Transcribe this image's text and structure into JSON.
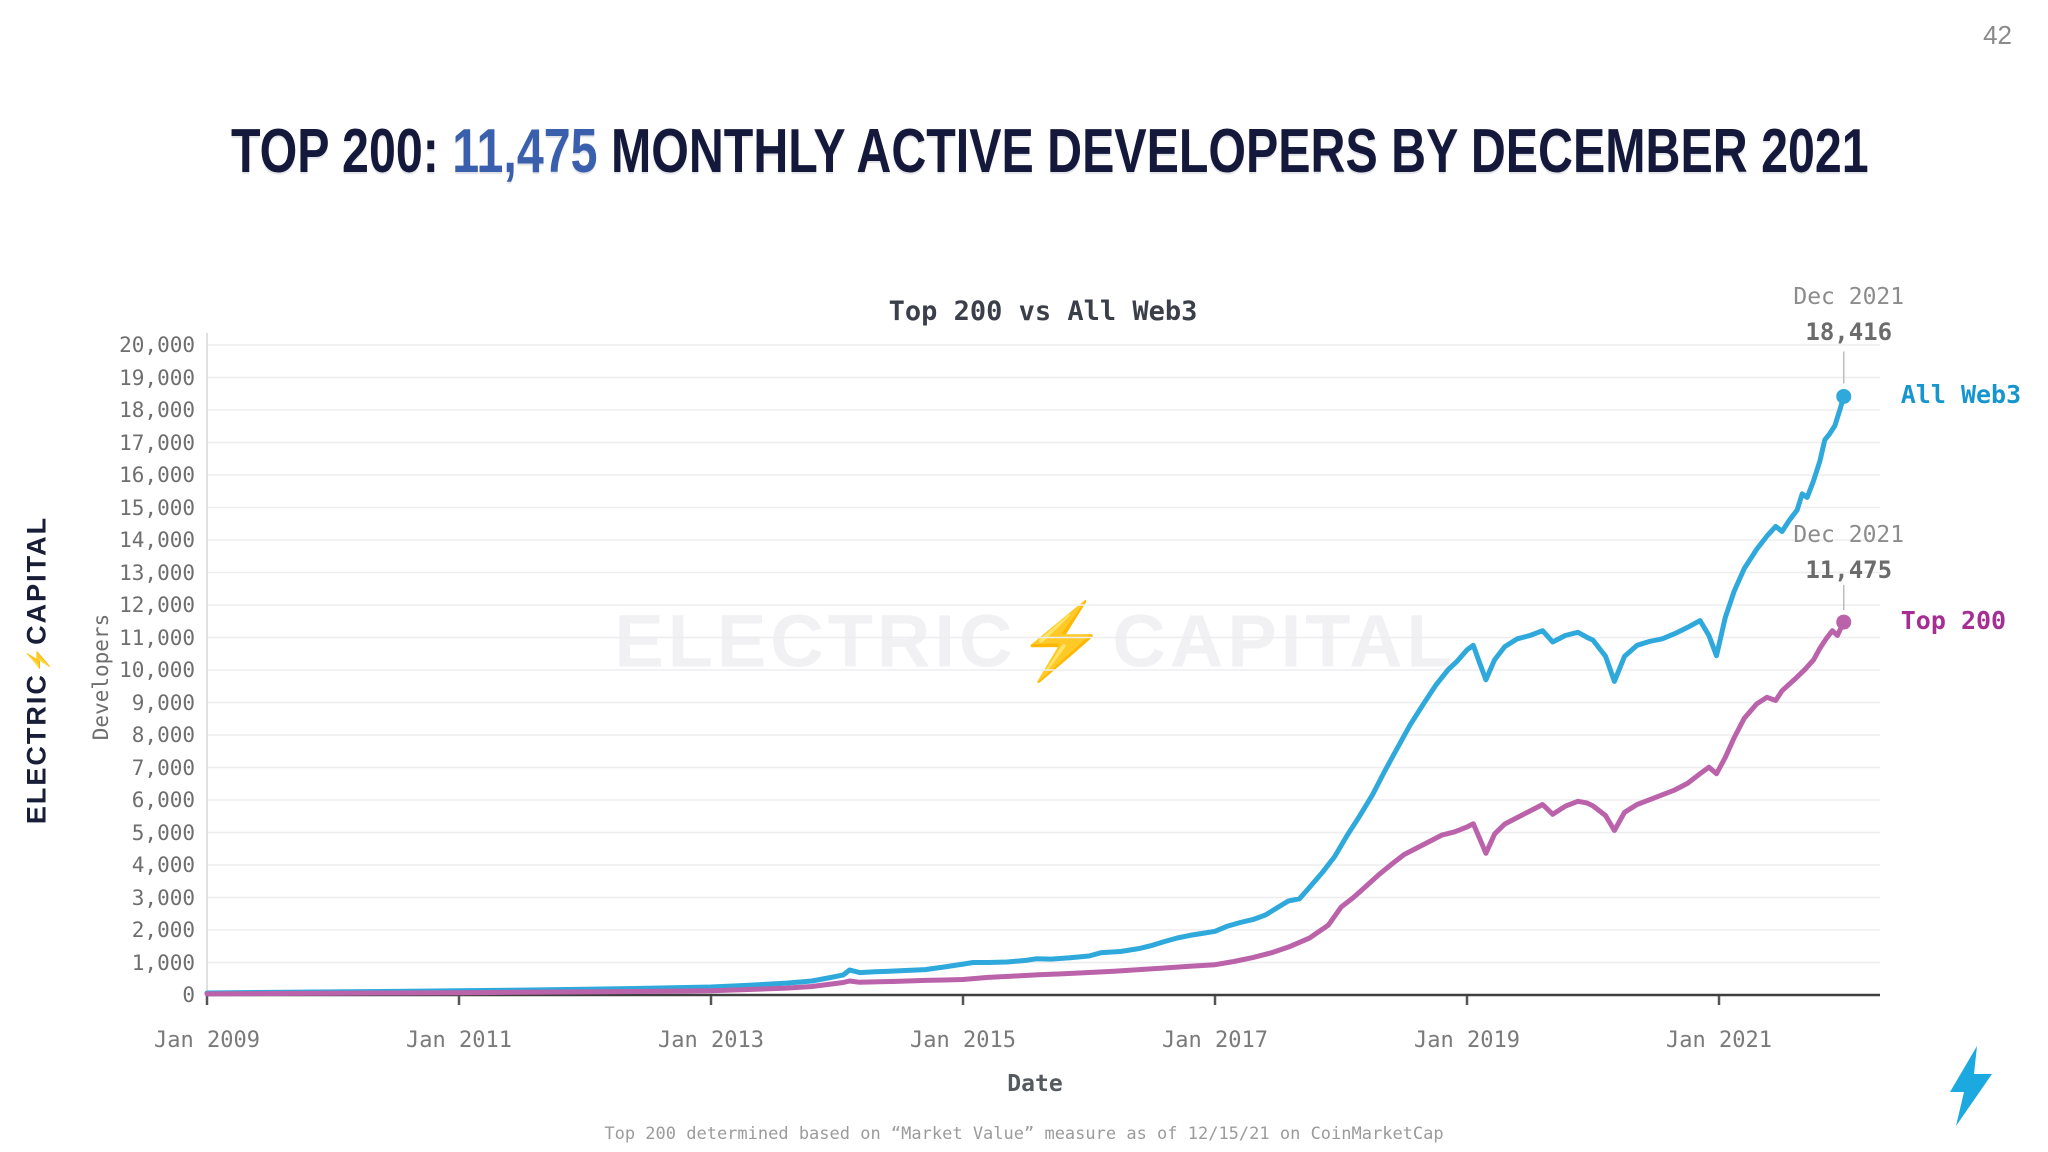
{
  "page": {
    "number": "42"
  },
  "slide_title": {
    "prefix": "TOP 200: ",
    "highlight": "11,475",
    "suffix": " MONTHLY ACTIVE DEVELOPERS BY DECEMBER 2021",
    "text_color": "#14183a",
    "highlight_color": "#3a5fad"
  },
  "logo": {
    "left_text": "ELECTRIC",
    "bolt": "⚡",
    "right_text": "CAPITAL",
    "color": "#191e38",
    "bolt_color": "#29abe2"
  },
  "watermark": {
    "text": "ELECTRIC⚡CAPITAL"
  },
  "footer": {
    "note": "Top 200 determined based on “Market Value” measure as of 12/15/21 on CoinMarketCap"
  },
  "bolt_icon_color": "#1ca9e0",
  "chart_data": {
    "type": "line",
    "title": "Top 200 vs All Web3",
    "xlabel": "Date",
    "ylabel": "Developers",
    "grid": true,
    "legend_position": "right-of-line-ends",
    "ylim": [
      0,
      20000
    ],
    "xlim": [
      2008.95,
      2022.3
    ],
    "y_ticks": [
      {
        "value": 0,
        "label": "0"
      },
      {
        "value": 1000,
        "label": "1,000"
      },
      {
        "value": 2000,
        "label": "2,000"
      },
      {
        "value": 3000,
        "label": "3,000"
      },
      {
        "value": 4000,
        "label": "4,000"
      },
      {
        "value": 5000,
        "label": "5,000"
      },
      {
        "value": 6000,
        "label": "6,000"
      },
      {
        "value": 7000,
        "label": "7,000"
      },
      {
        "value": 8000,
        "label": "8,000"
      },
      {
        "value": 9000,
        "label": "9,000"
      },
      {
        "value": 10000,
        "label": "10,000"
      },
      {
        "value": 11000,
        "label": "11,000"
      },
      {
        "value": 12000,
        "label": "12,000"
      },
      {
        "value": 13000,
        "label": "13,000"
      },
      {
        "value": 14000,
        "label": "14,000"
      },
      {
        "value": 15000,
        "label": "15,000"
      },
      {
        "value": 16000,
        "label": "16,000"
      },
      {
        "value": 17000,
        "label": "17,000"
      },
      {
        "value": 18000,
        "label": "18,000"
      },
      {
        "value": 19000,
        "label": "19,000"
      },
      {
        "value": 20000,
        "label": "20,000"
      }
    ],
    "x_ticks": [
      {
        "year": 2009,
        "label": "Jan 2009"
      },
      {
        "year": 2011,
        "label": "Jan 2011"
      },
      {
        "year": 2013,
        "label": "Jan 2013"
      },
      {
        "year": 2015,
        "label": "Jan 2015"
      },
      {
        "year": 2017,
        "label": "Jan 2017"
      },
      {
        "year": 2019,
        "label": "Jan 2019"
      },
      {
        "year": 2021,
        "label": "Jan 2021"
      }
    ],
    "series": [
      {
        "name": "All Web3",
        "line_color": "#2fa9dc",
        "label_color": "#1795ce",
        "end_value": 18416,
        "annotation": {
          "line1": "Dec 2021",
          "line2": "18,416"
        },
        "points": [
          [
            2009.0,
            60
          ],
          [
            2009.5,
            80
          ],
          [
            2010.0,
            95
          ],
          [
            2010.5,
            110
          ],
          [
            2011.0,
            130
          ],
          [
            2011.5,
            152
          ],
          [
            2012.0,
            178
          ],
          [
            2012.5,
            205
          ],
          [
            2013.0,
            245
          ],
          [
            2013.3,
            300
          ],
          [
            2013.6,
            365
          ],
          [
            2013.8,
            430
          ],
          [
            2013.95,
            540
          ],
          [
            2014.05,
            620
          ],
          [
            2014.1,
            770
          ],
          [
            2014.18,
            690
          ],
          [
            2014.3,
            715
          ],
          [
            2014.5,
            745
          ],
          [
            2014.7,
            780
          ],
          [
            2014.85,
            860
          ],
          [
            2015.0,
            950
          ],
          [
            2015.08,
            1000
          ],
          [
            2015.2,
            1000
          ],
          [
            2015.35,
            1015
          ],
          [
            2015.5,
            1065
          ],
          [
            2015.58,
            1115
          ],
          [
            2015.7,
            1105
          ],
          [
            2015.85,
            1145
          ],
          [
            2016.0,
            1200
          ],
          [
            2016.1,
            1305
          ],
          [
            2016.25,
            1340
          ],
          [
            2016.4,
            1430
          ],
          [
            2016.5,
            1525
          ],
          [
            2016.6,
            1645
          ],
          [
            2016.7,
            1755
          ],
          [
            2016.8,
            1835
          ],
          [
            2016.9,
            1895
          ],
          [
            2017.0,
            1960
          ],
          [
            2017.1,
            2120
          ],
          [
            2017.2,
            2230
          ],
          [
            2017.3,
            2320
          ],
          [
            2017.4,
            2460
          ],
          [
            2017.5,
            2700
          ],
          [
            2017.58,
            2890
          ],
          [
            2017.67,
            2960
          ],
          [
            2017.75,
            3310
          ],
          [
            2017.85,
            3760
          ],
          [
            2017.95,
            4260
          ],
          [
            2018.05,
            4920
          ],
          [
            2018.15,
            5520
          ],
          [
            2018.25,
            6160
          ],
          [
            2018.35,
            6910
          ],
          [
            2018.45,
            7620
          ],
          [
            2018.55,
            8320
          ],
          [
            2018.65,
            8930
          ],
          [
            2018.75,
            9520
          ],
          [
            2018.85,
            10010
          ],
          [
            2018.92,
            10260
          ],
          [
            2019.0,
            10620
          ],
          [
            2019.05,
            10760
          ],
          [
            2019.1,
            10220
          ],
          [
            2019.15,
            9700
          ],
          [
            2019.22,
            10320
          ],
          [
            2019.3,
            10720
          ],
          [
            2019.4,
            10960
          ],
          [
            2019.5,
            11060
          ],
          [
            2019.6,
            11210
          ],
          [
            2019.68,
            10860
          ],
          [
            2019.78,
            11060
          ],
          [
            2019.88,
            11160
          ],
          [
            2019.95,
            11010
          ],
          [
            2020.0,
            10920
          ],
          [
            2020.1,
            10420
          ],
          [
            2020.17,
            9650
          ],
          [
            2020.25,
            10420
          ],
          [
            2020.35,
            10760
          ],
          [
            2020.45,
            10880
          ],
          [
            2020.55,
            10960
          ],
          [
            2020.65,
            11120
          ],
          [
            2020.75,
            11310
          ],
          [
            2020.85,
            11520
          ],
          [
            2020.92,
            11060
          ],
          [
            2020.98,
            10440
          ],
          [
            2021.05,
            11620
          ],
          [
            2021.12,
            12420
          ],
          [
            2021.2,
            13120
          ],
          [
            2021.3,
            13720
          ],
          [
            2021.38,
            14120
          ],
          [
            2021.45,
            14420
          ],
          [
            2021.5,
            14260
          ],
          [
            2021.56,
            14620
          ],
          [
            2021.62,
            14920
          ],
          [
            2021.66,
            15420
          ],
          [
            2021.7,
            15310
          ],
          [
            2021.75,
            15820
          ],
          [
            2021.8,
            16420
          ],
          [
            2021.84,
            17080
          ],
          [
            2021.88,
            17280
          ],
          [
            2021.92,
            17520
          ],
          [
            2021.96,
            18020
          ],
          [
            2021.99,
            18416
          ]
        ]
      },
      {
        "name": "Top 200",
        "line_color": "#ba62aa",
        "label_color": "#a62d92",
        "end_value": 11475,
        "annotation": {
          "line1": "Dec 2021",
          "line2": "11,475"
        },
        "points": [
          [
            2009.0,
            35
          ],
          [
            2009.5,
            45
          ],
          [
            2010.0,
            55
          ],
          [
            2010.5,
            62
          ],
          [
            2011.0,
            72
          ],
          [
            2011.5,
            82
          ],
          [
            2012.0,
            95
          ],
          [
            2012.5,
            112
          ],
          [
            2013.0,
            132
          ],
          [
            2013.3,
            168
          ],
          [
            2013.6,
            212
          ],
          [
            2013.8,
            262
          ],
          [
            2013.95,
            335
          ],
          [
            2014.05,
            385
          ],
          [
            2014.1,
            430
          ],
          [
            2014.18,
            392
          ],
          [
            2014.3,
            402
          ],
          [
            2014.5,
            422
          ],
          [
            2014.7,
            448
          ],
          [
            2014.85,
            462
          ],
          [
            2015.0,
            478
          ],
          [
            2015.2,
            542
          ],
          [
            2015.4,
            582
          ],
          [
            2015.6,
            622
          ],
          [
            2015.8,
            652
          ],
          [
            2016.0,
            692
          ],
          [
            2016.2,
            732
          ],
          [
            2016.4,
            782
          ],
          [
            2016.6,
            832
          ],
          [
            2016.8,
            882
          ],
          [
            2017.0,
            932
          ],
          [
            2017.15,
            1032
          ],
          [
            2017.3,
            1152
          ],
          [
            2017.45,
            1302
          ],
          [
            2017.6,
            1502
          ],
          [
            2017.75,
            1752
          ],
          [
            2017.9,
            2152
          ],
          [
            2018.0,
            2702
          ],
          [
            2018.1,
            3002
          ],
          [
            2018.2,
            3352
          ],
          [
            2018.3,
            3702
          ],
          [
            2018.4,
            4020
          ],
          [
            2018.5,
            4320
          ],
          [
            2018.6,
            4520
          ],
          [
            2018.7,
            4720
          ],
          [
            2018.8,
            4920
          ],
          [
            2018.9,
            5020
          ],
          [
            2019.0,
            5170
          ],
          [
            2019.05,
            5270
          ],
          [
            2019.1,
            4820
          ],
          [
            2019.15,
            4360
          ],
          [
            2019.22,
            4960
          ],
          [
            2019.3,
            5260
          ],
          [
            2019.4,
            5460
          ],
          [
            2019.5,
            5660
          ],
          [
            2019.6,
            5860
          ],
          [
            2019.68,
            5560
          ],
          [
            2019.78,
            5810
          ],
          [
            2019.88,
            5960
          ],
          [
            2019.95,
            5910
          ],
          [
            2020.0,
            5820
          ],
          [
            2020.1,
            5520
          ],
          [
            2020.17,
            5060
          ],
          [
            2020.25,
            5620
          ],
          [
            2020.35,
            5860
          ],
          [
            2020.45,
            6010
          ],
          [
            2020.55,
            6160
          ],
          [
            2020.65,
            6310
          ],
          [
            2020.75,
            6510
          ],
          [
            2020.85,
            6810
          ],
          [
            2020.92,
            7010
          ],
          [
            2020.98,
            6810
          ],
          [
            2021.05,
            7310
          ],
          [
            2021.12,
            7910
          ],
          [
            2021.2,
            8510
          ],
          [
            2021.3,
            8960
          ],
          [
            2021.38,
            9160
          ],
          [
            2021.45,
            9060
          ],
          [
            2021.5,
            9360
          ],
          [
            2021.6,
            9710
          ],
          [
            2021.68,
            10010
          ],
          [
            2021.75,
            10310
          ],
          [
            2021.8,
            10660
          ],
          [
            2021.85,
            10960
          ],
          [
            2021.9,
            11210
          ],
          [
            2021.94,
            11060
          ],
          [
            2021.99,
            11475
          ]
        ]
      }
    ]
  }
}
